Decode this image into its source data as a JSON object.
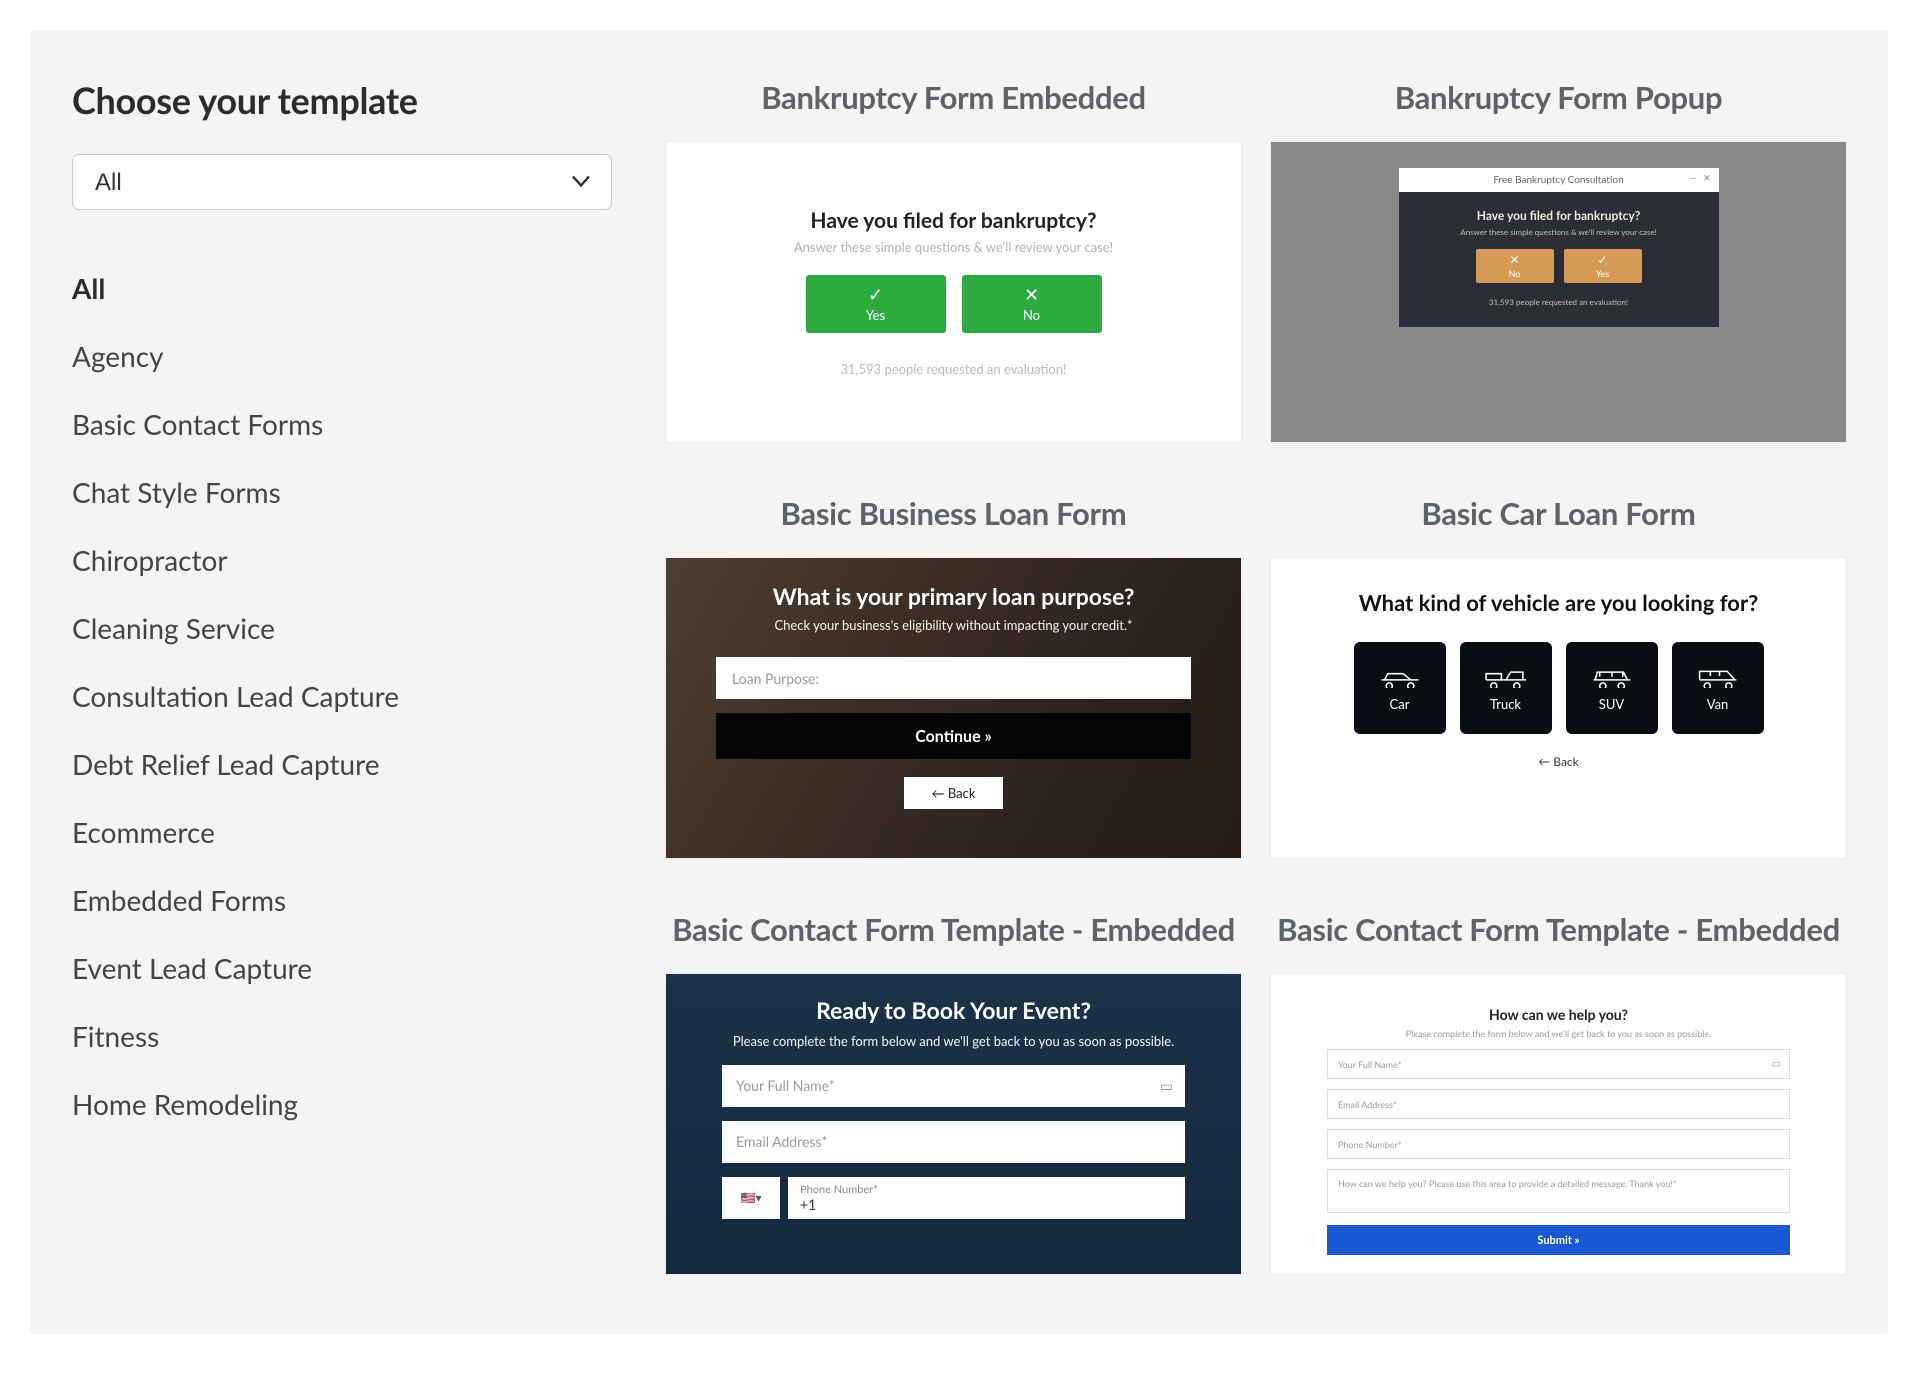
{
  "sidebar": {
    "heading": "Choose your template",
    "select_value": "All",
    "active_index": 0,
    "categories": [
      "All",
      "Agency",
      "Basic Contact Forms",
      "Chat Style Forms",
      "Chiropractor",
      "Cleaning Service",
      "Consultation Lead Capture",
      "Debt Relief Lead Capture",
      "Ecommerce",
      "Embedded Forms",
      "Event Lead Capture",
      "Fitness",
      "Home Remodeling"
    ]
  },
  "cards": {
    "bankruptcy_embedded": {
      "title": "Bankruptcy Form Embedded",
      "question": "Have you filed for bankruptcy?",
      "sub": "Answer these simple questions & we'll review your case!",
      "yes": "Yes",
      "no": "No",
      "footer": "31,593 people requested an evaluation!",
      "btn_bg": "#2cab3f"
    },
    "bankruptcy_popup": {
      "title": "Bankruptcy Form Popup",
      "modal_title": "Free Bankruptcy Consultation",
      "question": "Have you filed for bankruptcy?",
      "sub": "Answer these simple questions & we'll review your case!",
      "yes": "Yes",
      "no": "No",
      "footer": "31,593 people requested an evaluation!",
      "page_bg": "#8a8a8a",
      "modal_bg": "#2b2e34",
      "btn_bg": "#d59a56"
    },
    "business_loan": {
      "title": "Basic Business Loan Form",
      "question": "What is your primary loan purpose?",
      "sub": "Check your business's eligibility without impacting your credit.*",
      "placeholder": "Loan Purpose:",
      "continue": "Continue »",
      "back": "← Back"
    },
    "car_loan": {
      "title": "Basic Car Loan Form",
      "question": "What kind of vehicle are you looking for?",
      "tiles": [
        "Car",
        "Truck",
        "SUV",
        "Van"
      ],
      "back": "← Back",
      "tile_bg": "#0b0d14"
    },
    "contact_event": {
      "title": "Basic Contact Form Template - Embedded",
      "question": "Ready to Book Your Event?",
      "sub": "Please complete the form below and we'll get back to you as soon as possible.",
      "name_ph": "Your Full Name*",
      "email_ph": "Email Address*",
      "phone_label": "Phone Number*",
      "phone_prefix": "+1",
      "flag": "🇺🇸▾"
    },
    "contact_simple": {
      "title": "Basic Contact Form Template - Embedded",
      "question": "How can we help you?",
      "sub": "Please complete the form below and we'll get back to you as soon as possible.",
      "name_ph": "Your Full Name*",
      "email_ph": "Email Address*",
      "phone_ph": "Phone Number*",
      "msg_ph": "How can we help you? Please use this area to provide a detailed message. Thank you!*",
      "submit": "Submit »",
      "submit_bg": "#1959d6"
    }
  }
}
